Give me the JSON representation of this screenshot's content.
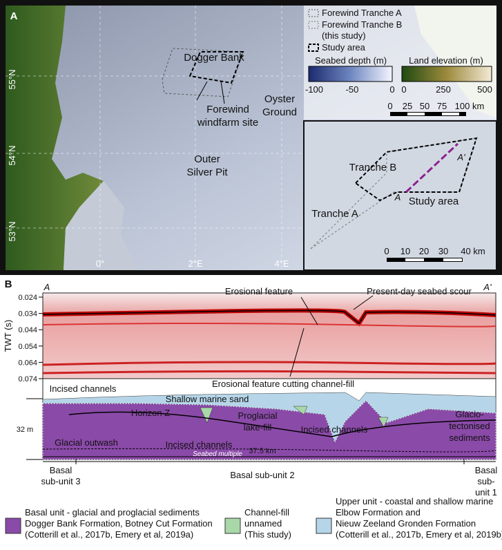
{
  "panel_a": {
    "label": "A",
    "latitudes": [
      "55°N",
      "54°N",
      "53°N"
    ],
    "longitudes": [
      "0°",
      "2°E",
      "4°E"
    ],
    "places": {
      "dogger_bank": "Dogger Bank",
      "windfarm": [
        "Forewind",
        "windfarm site"
      ],
      "oyster_ground": [
        "Oyster",
        "Ground"
      ],
      "silver_pit": [
        "Outer",
        "Silver Pit"
      ]
    },
    "legend": {
      "tranche_a": "Forewind Tranche A",
      "tranche_b": [
        "Forewind Tranche B",
        "(this study)"
      ],
      "study_area": "Study area",
      "seabed": {
        "title": "Seabed depth (m)",
        "ticks": [
          "-100",
          "-50",
          "0"
        ]
      },
      "land": {
        "title": "Land elevation (m)",
        "ticks": [
          "0",
          "250",
          "500"
        ]
      },
      "scale": [
        "0",
        "25",
        "50",
        "75",
        "100 km"
      ]
    },
    "inset": {
      "tranche_b": "Tranche B",
      "tranche_a": "Tranche A",
      "study_area": "Study area",
      "start": "A",
      "end": "A'",
      "scale": [
        "0",
        "10",
        "20",
        "30",
        "40 km"
      ]
    }
  },
  "panel_b": {
    "label": "B",
    "start": "A",
    "end": "A'",
    "y_axis": {
      "label": "TWT (s)",
      "ticks": [
        0.024,
        0.034,
        0.044,
        0.054,
        0.064,
        0.074
      ]
    },
    "seismic_labels": {
      "erosional": "Erosional feature",
      "scour": "Present-day seabed scour"
    },
    "interpretation": {
      "cutting": "Erosional feature cutting channel-fill",
      "incised_1": "Incised channels",
      "sand": "Shallow marine sand",
      "horizon": "Horizon Z",
      "lake": [
        "Proglacial",
        "lake-fill"
      ],
      "incised_2": "Incised channels",
      "outwash": "Glacial outwash",
      "incised_3": "Incised channels",
      "multiple": "Seabed multiple",
      "glacio": [
        "Glacio-",
        "tectonised",
        "sediments"
      ]
    },
    "thickness": "32 m",
    "distance": "37.5 km",
    "sub_units": {
      "unit_3": [
        "Basal",
        "sub-unit 3"
      ],
      "unit_2": "Basal sub-unit 2",
      "unit_1": [
        "Basal",
        "sub-",
        "unit 1"
      ]
    },
    "legend": {
      "basal": [
        "Basal unit - glacial and proglacial sediments",
        "Dogger Bank Formation, Botney Cut Formation",
        "(Cotterill et al., 2017b, Emery et al, 2019a)"
      ],
      "channel": [
        "Channel-fill",
        "unnamed",
        "(This study)"
      ],
      "upper": [
        "Upper unit - coastal and shallow marine",
        "Elbow Formation and",
        "Nieuw Zeeland Gronden Formation",
        "(Cotterill et al., 2017b, Emery et al, 2019b)"
      ]
    }
  }
}
